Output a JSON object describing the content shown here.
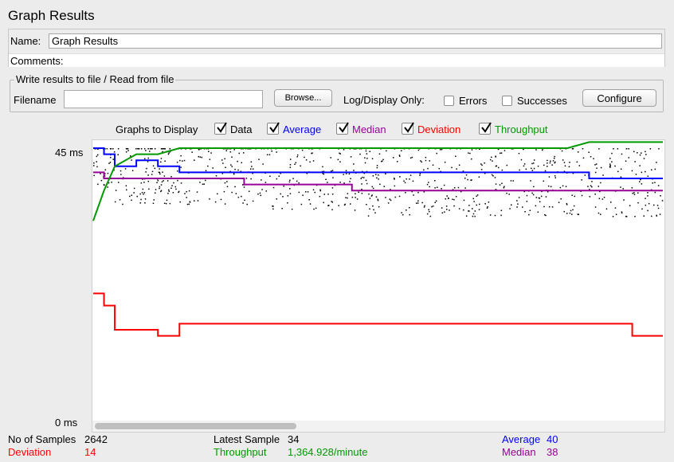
{
  "title": "Graph Results",
  "name_label": "Name:",
  "name_value": "Graph Results",
  "comments_label": "Comments:",
  "file_section": {
    "legend": "Write results to file / Read from file",
    "filename_label": "Filename",
    "filename_value": "",
    "browse_label": "Browse...",
    "log_display_label": "Log/Display Only:",
    "errors_label": "Errors",
    "successes_label": "Successes",
    "configure_label": "Configure"
  },
  "graphs": {
    "label": "Graphs to Display",
    "items": [
      {
        "label": "Data",
        "color": "#000000",
        "checked": true
      },
      {
        "label": "Average",
        "color": "#0000ff",
        "checked": true
      },
      {
        "label": "Median",
        "color": "#990099",
        "checked": true
      },
      {
        "label": "Deviation",
        "color": "#ff0000",
        "checked": true
      },
      {
        "label": "Throughput",
        "color": "#009900",
        "checked": true
      }
    ]
  },
  "y_axis": {
    "max_label": "45 ms",
    "min_label": "0 ms"
  },
  "chart_data": {
    "type": "line",
    "title": "Graph Results",
    "ylabel": "ms",
    "ylim": [
      0,
      45
    ],
    "x": [
      0,
      50,
      100,
      200,
      300,
      400,
      500,
      600,
      700,
      800,
      900,
      1000,
      1100,
      1200,
      1300,
      1400,
      1500,
      1600,
      1700,
      1800,
      1900,
      2000,
      2100,
      2200,
      2300,
      2400,
      2500,
      2642
    ],
    "series": [
      {
        "name": "Average",
        "color": "#0000ff",
        "values": [
          45,
          44,
          42,
          43,
          42,
          41,
          41,
          41,
          41,
          41,
          41,
          41,
          41,
          41,
          41,
          41,
          41,
          41,
          41,
          41,
          41,
          41,
          41,
          41,
          40,
          40,
          40,
          40
        ]
      },
      {
        "name": "Median",
        "color": "#990099",
        "values": [
          41,
          40,
          40,
          40,
          40,
          40,
          40,
          40,
          39,
          39,
          39,
          39,
          39,
          38,
          38,
          38,
          38,
          38,
          38,
          38,
          38,
          38,
          38,
          38,
          38,
          38,
          38,
          38
        ]
      },
      {
        "name": "Deviation",
        "color": "#ff0000",
        "values": [
          21,
          19,
          15,
          15,
          14,
          16,
          16,
          16,
          16,
          16,
          16,
          16,
          16,
          16,
          16,
          16,
          16,
          16,
          16,
          16,
          16,
          16,
          16,
          16,
          16,
          16,
          14,
          14
        ]
      },
      {
        "name": "Throughput",
        "color": "#009900",
        "values": [
          33,
          38,
          42,
          44,
          44,
          45,
          45,
          45,
          45,
          45,
          45,
          45,
          45,
          45,
          45,
          45,
          45,
          45,
          45,
          45,
          45,
          45,
          45,
          45,
          46,
          46,
          46,
          46
        ]
      }
    ]
  },
  "stats": {
    "no_of_samples_label": "No of Samples",
    "no_of_samples": "2642",
    "latest_sample_label": "Latest Sample",
    "latest_sample": "34",
    "average_label": "Average",
    "average": "40",
    "deviation_label": "Deviation",
    "deviation": "14",
    "throughput_label": "Throughput",
    "throughput": "1,364.928/minute",
    "median_label": "Median",
    "median": "38"
  }
}
